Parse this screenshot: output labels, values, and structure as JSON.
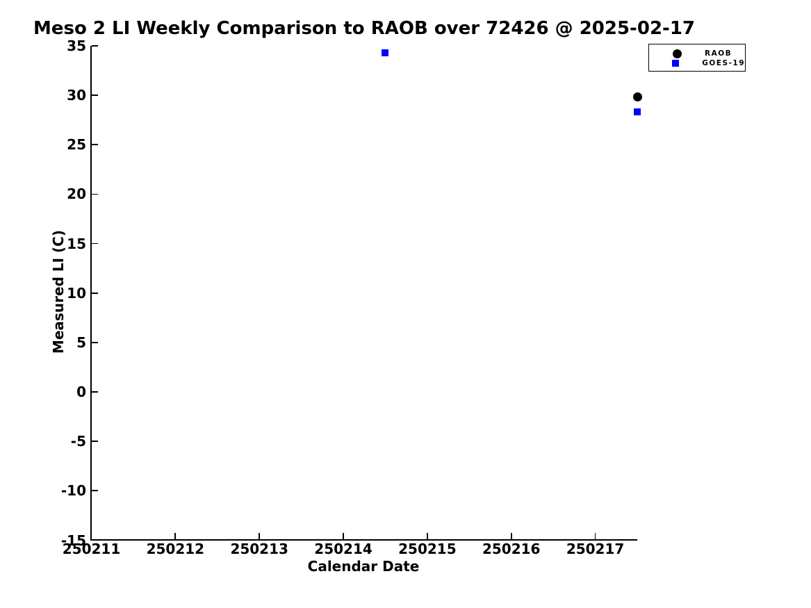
{
  "chart_data": {
    "type": "scatter",
    "title": "Meso 2 LI Weekly Comparison to RAOB over 72426 @ 2025-02-17",
    "xlabel": "Calendar Date",
    "ylabel": "Measured LI (C)",
    "xlim": [
      250211,
      250217.5
    ],
    "ylim": [
      -15,
      35
    ],
    "grid": false,
    "legend_position": "top-right",
    "x_ticks": [
      {
        "value": 250211,
        "label": "250211"
      },
      {
        "value": 250212,
        "label": "250212"
      },
      {
        "value": 250213,
        "label": "250213"
      },
      {
        "value": 250214,
        "label": "250214"
      },
      {
        "value": 250215,
        "label": "250215"
      },
      {
        "value": 250216,
        "label": "250216"
      },
      {
        "value": 250217,
        "label": "250217"
      }
    ],
    "y_ticks": [
      {
        "value": 35,
        "label": "35"
      },
      {
        "value": 30,
        "label": "30"
      },
      {
        "value": 25,
        "label": "25"
      },
      {
        "value": 20,
        "label": "20"
      },
      {
        "value": 15,
        "label": "15"
      },
      {
        "value": 10,
        "label": "10"
      },
      {
        "value": 5,
        "label": "5"
      },
      {
        "value": 0,
        "label": "0"
      },
      {
        "value": -5,
        "label": "-5"
      },
      {
        "value": -10,
        "label": "-10"
      },
      {
        "value": -15,
        "label": "-15"
      }
    ],
    "series": [
      {
        "name": "RAOB",
        "marker": "circle",
        "color": "#000000",
        "marker_size": 13,
        "points": [
          {
            "x": 250217.5,
            "y": 29.8
          }
        ]
      },
      {
        "name": "GOES-19",
        "marker": "square",
        "color": "#0000ff",
        "marker_size": 10,
        "points": [
          {
            "x": 250214.5,
            "y": 34.3
          },
          {
            "x": 250217.5,
            "y": 28.3
          }
        ]
      }
    ]
  },
  "colors": {
    "background": "#ffffff",
    "axis": "#000000",
    "text": "#000000",
    "raob": "#000000",
    "goes19": "#0000ff"
  }
}
